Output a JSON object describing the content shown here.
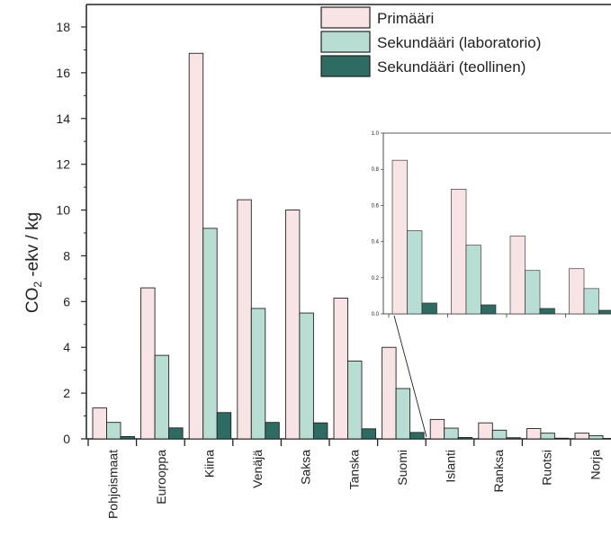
{
  "chart_data": [
    {
      "type": "bar",
      "ylabel_main": "CO",
      "ylabel_sub": "2",
      "ylabel_rest": " -ekv / kg",
      "ylim": [
        0,
        18
      ],
      "yticks": [
        0,
        2,
        4,
        6,
        8,
        10,
        12,
        14,
        16,
        18
      ],
      "categories": [
        "Pohjoismaat",
        "Eurooppa",
        "Kiina",
        "Venäjä",
        "Saksa",
        "Tanska",
        "Suomi",
        "Islanti",
        "Ranksa",
        "Ruotsi",
        "Norja"
      ],
      "series": [
        {
          "name": "Primääri",
          "color": "#f8e4e4",
          "values": [
            1.35,
            6.6,
            16.85,
            10.45,
            10.0,
            6.15,
            4.0,
            0.85,
            0.7,
            0.45,
            0.25
          ]
        },
        {
          "name": "Sekundääri (laboratorio)",
          "color": "#b8ded4",
          "values": [
            0.72,
            3.65,
            9.2,
            5.7,
            5.5,
            3.4,
            2.2,
            0.47,
            0.38,
            0.25,
            0.14
          ]
        },
        {
          "name": "Sekundääri (teollinen)",
          "color": "#2e6b62",
          "values": [
            0.1,
            0.48,
            1.15,
            0.72,
            0.7,
            0.44,
            0.28,
            0.06,
            0.05,
            0.03,
            0.02
          ]
        }
      ],
      "legend_position": "top-right",
      "grid": false
    },
    {
      "type": "bar",
      "role": "inset",
      "ylim": [
        0,
        1.0
      ],
      "ytick_labels": [
        "0.0",
        "0.2",
        "0.4",
        "0.6",
        "0.8",
        "1.0"
      ],
      "categories_count": 4,
      "series": [
        {
          "values": [
            0.85,
            0.69,
            0.43,
            0.25
          ]
        },
        {
          "values": [
            0.46,
            0.38,
            0.24,
            0.14
          ]
        },
        {
          "values": [
            0.06,
            0.05,
            0.03,
            0.02
          ]
        }
      ]
    }
  ]
}
